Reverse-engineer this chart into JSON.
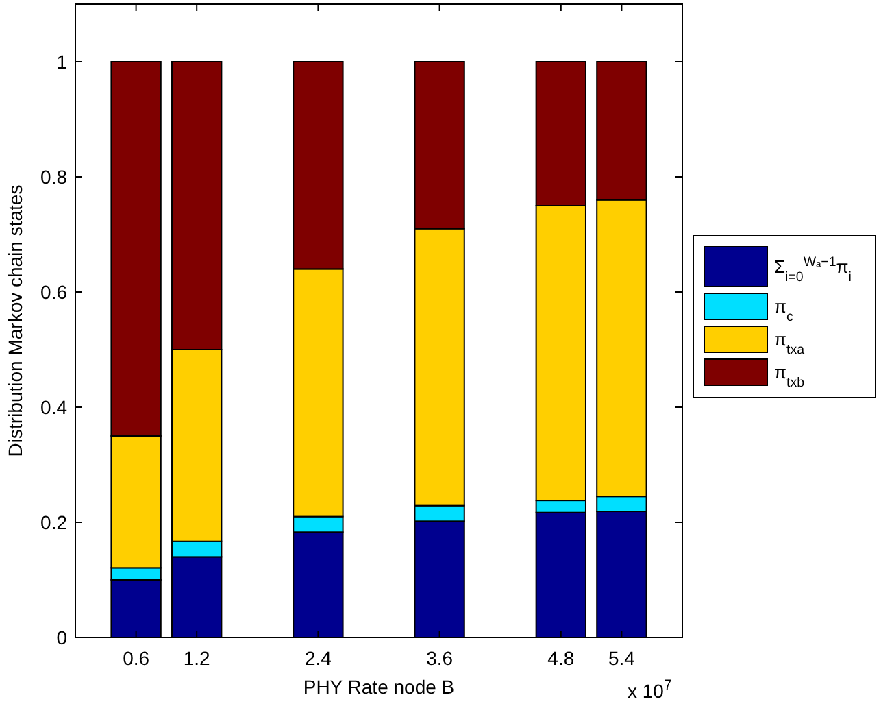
{
  "chart_data": {
    "type": "bar",
    "stacked": true,
    "xlabel": "PHY Rate node B",
    "ylabel": "Distribution Markov chain states",
    "x": [
      0.6,
      1.2,
      2.4,
      3.6,
      4.8,
      5.4
    ],
    "series": [
      {
        "name": "Σ$_{i=0}$$^{Wₐ−1}$π$_{i}$",
        "color": "#00008f",
        "values": [
          0.1,
          0.14,
          0.183,
          0.202,
          0.217,
          0.219
        ]
      },
      {
        "name": "π$_{c}$",
        "color": "#00dfff",
        "values": [
          0.021,
          0.027,
          0.027,
          0.027,
          0.021,
          0.026
        ]
      },
      {
        "name": "π$_{txa}$",
        "color": "#ffcf00",
        "values": [
          0.229,
          0.333,
          0.43,
          0.481,
          0.512,
          0.515
        ]
      },
      {
        "name": "π$_{txb}$",
        "color": "#7f0000",
        "values": [
          0.65,
          0.5,
          0.36,
          0.29,
          0.25,
          0.24
        ]
      }
    ],
    "xlim": [
      0,
      6
    ],
    "xticks": [
      0.6,
      1.2,
      2.4,
      3.6,
      4.8,
      5.4
    ],
    "ylim": [
      0,
      1.1
    ],
    "yticks": [
      0,
      0.2,
      0.4,
      0.6,
      0.8,
      1
    ],
    "annotations": [
      "x 10$^{7}$"
    ],
    "legend": "right",
    "grid": false
  }
}
